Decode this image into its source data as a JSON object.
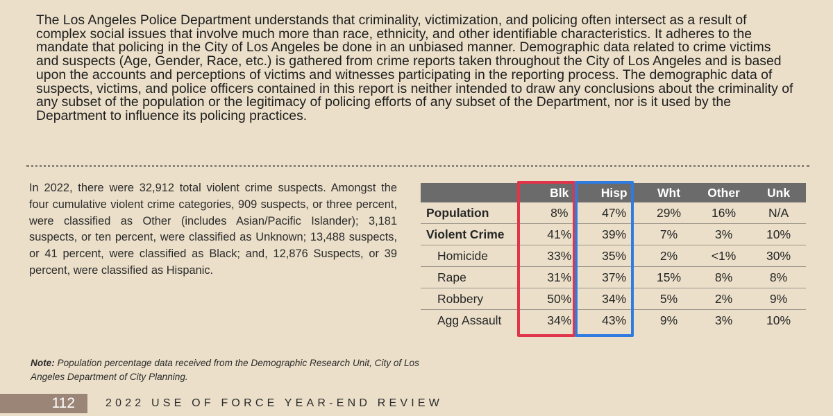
{
  "intro_paragraph": "The Los Angeles Police Department understands that criminality, victimization, and policing often intersect as a result of complex social issues that involve much more than race, ethnicity, and other identifiable characteristics. It adheres to the mandate that policing in the City of Los Angeles be done in an unbiased manner.  Demographic data related to crime victims and suspects (Age, Gender, Race, etc.) is gathered from crime reports taken throughout the City of Los Angeles and is based upon the accounts and perceptions of victims and witnesses participating in the reporting process.  The demographic data of suspects, victims, and police officers contained in this report is neither intended to draw any conclusions about the criminality of any subset of the population or the legitimacy of policing efforts of any subset of the Department, nor is it used by the Department to influence its policing practices.",
  "summary_paragraph": "In 2022, there were 32,912 total violent crime suspects. Amongst the four cumulative violent crime categories, 909 suspects, or three percent, were classified as Other (includes Asian/Pacific Islander); 3,181 suspects, or ten percent, were classified as Unknown; 13,488 suspects, or 41 percent, were classified as Black; and, 12,876 Suspects, or 39 percent, were classified as Hispanic.",
  "table": {
    "headers": [
      "",
      "Blk",
      "Hisp",
      "Wht",
      "Other",
      "Unk"
    ],
    "rows": [
      {
        "label": "Population",
        "values": [
          "8%",
          "47%",
          "29%",
          "16%",
          "N/A"
        ]
      },
      {
        "label": "Violent Crime",
        "values": [
          "41%",
          "39%",
          "7%",
          "3%",
          "10%"
        ]
      },
      {
        "label": "Homicide",
        "values": [
          "33%",
          "35%",
          "2%",
          "<1%",
          "30%"
        ]
      },
      {
        "label": "Rape",
        "values": [
          "31%",
          "37%",
          "15%",
          "8%",
          "8%"
        ]
      },
      {
        "label": "Robbery",
        "values": [
          "50%",
          "34%",
          "5%",
          "2%",
          "9%"
        ]
      },
      {
        "label": "Agg Assault",
        "values": [
          "34%",
          "43%",
          "9%",
          "3%",
          "10%"
        ]
      }
    ]
  },
  "note": {
    "label": "Note:",
    "text": " Population percentage data received from the Demographic Research Unit, City of Los Angeles Department of City Planning."
  },
  "footer": {
    "page_number": "112",
    "report_title": "2022 USE OF FORCE YEAR-END REVIEW"
  },
  "colors": {
    "highlight_black_column": "#e0354a",
    "highlight_hispanic_column": "#2f7be0",
    "header_background": "#6b6b6b",
    "page_background": "#ebdfc9"
  }
}
